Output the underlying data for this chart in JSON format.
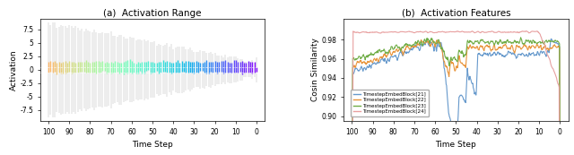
{
  "left_title": "(a)  Activation Range",
  "right_title": "(b)  Activation Features",
  "left_ylabel": "Activation",
  "right_ylabel": "Cosin Similarity",
  "xlabel": "Time Step",
  "left_ylim": [
    -9.5,
    9.5
  ],
  "left_yticks": [
    -7.5,
    -5.0,
    -2.5,
    0.0,
    2.5,
    5.0,
    7.5
  ],
  "right_ylim": [
    0.895,
    1.002
  ],
  "right_yticks": [
    0.9,
    0.92,
    0.94,
    0.96,
    0.98
  ],
  "xticks": [
    100,
    90,
    80,
    70,
    60,
    50,
    40,
    30,
    20,
    10,
    0
  ],
  "legend_labels": [
    "TimestepEmbedBlock[21]",
    "TimestepEmbedBlock[22]",
    "TimestepEmbedBlock[23]",
    "TimestepEmbedBlock[24]"
  ],
  "legend_colors": [
    "#6699cc",
    "#e8943a",
    "#70ad47",
    "#e8a0a0"
  ],
  "background_color": "#ffffff",
  "fig_title_left": "(a)  Activation Range",
  "fig_title_right": "(b)  Activation Features"
}
